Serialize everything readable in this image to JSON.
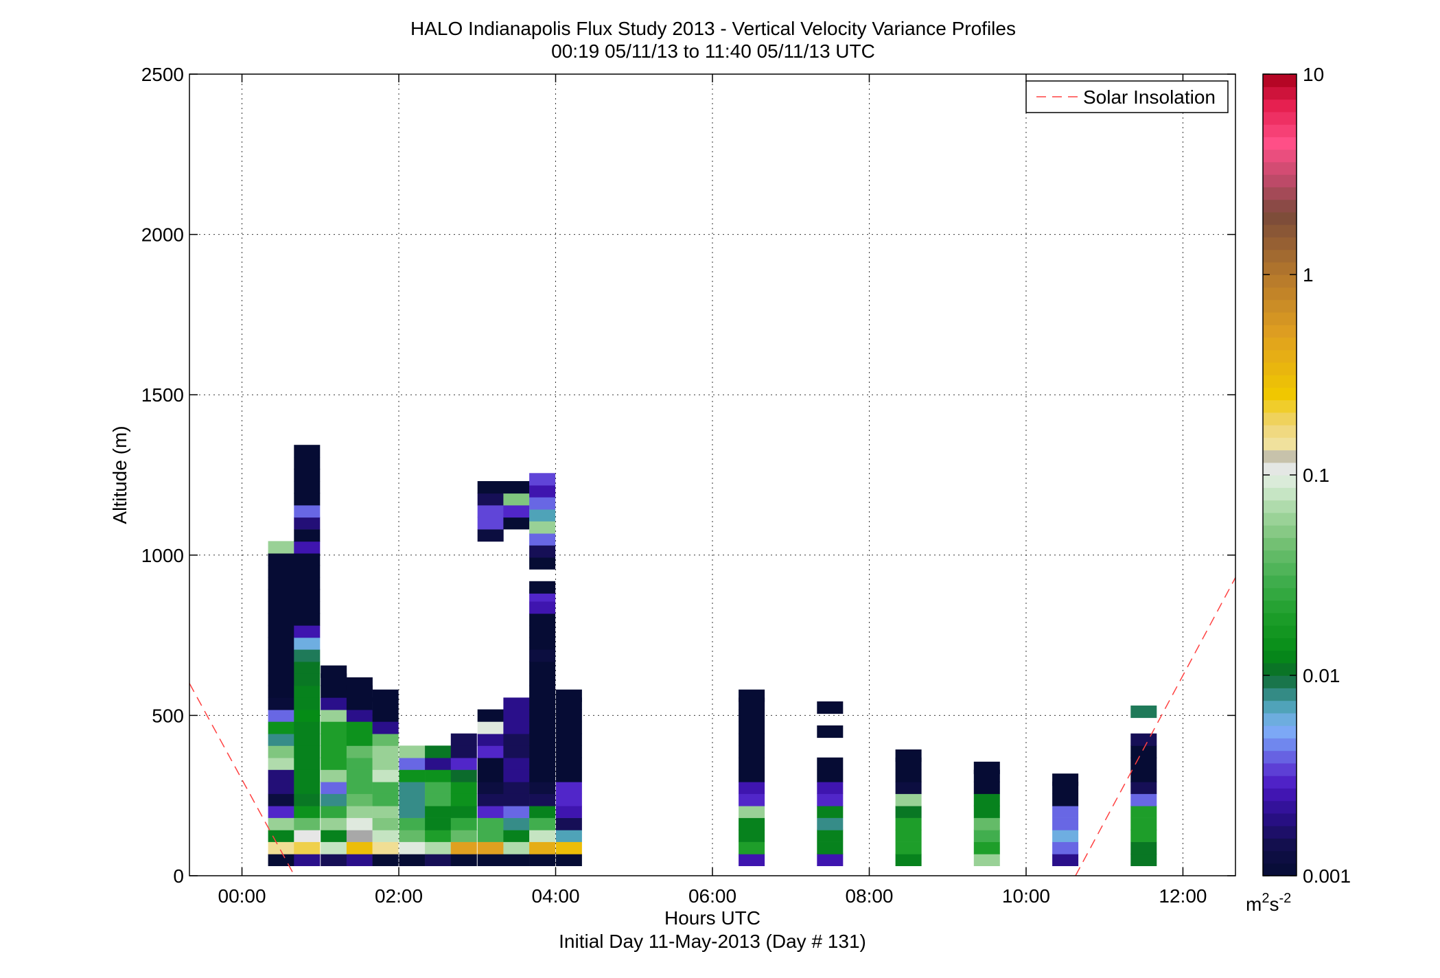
{
  "chart_data": {
    "type": "heatmap",
    "title": "HALO Indianapolis Flux Study 2013 - Vertical Velocity Variance Profiles",
    "subtitle": "00:19 05/11/13 to 11:40 05/11/13  UTC",
    "xlabel": "Hours UTC",
    "xlabel2": "Initial Day 11-May-2013 (Day # 131)",
    "ylabel": "Altitude (m)",
    "xlim": [
      -0.67,
      12.67
    ],
    "ylim": [
      0,
      2500
    ],
    "x_ticks": [
      0,
      2,
      4,
      6,
      8,
      10,
      12
    ],
    "x_tick_labels": [
      "00:00",
      "02:00",
      "04:00",
      "06:00",
      "08:00",
      "10:00",
      "12:00"
    ],
    "y_ticks": [
      0,
      500,
      1000,
      1500,
      2000,
      2500
    ],
    "y_tick_labels": [
      "0",
      "500",
      "1000",
      "1500",
      "2000",
      "2500"
    ],
    "grid": true,
    "legend": {
      "position": "top-right",
      "entries": [
        "Solar Insolation"
      ]
    },
    "colorbar": {
      "scale": "log",
      "range": [
        0.001,
        10
      ],
      "ticks": [
        0.001,
        0.01,
        0.1,
        1,
        10
      ],
      "tick_labels": [
        "0.001",
        "0.01",
        "0.1",
        "1",
        "10"
      ],
      "unit_base": "m",
      "unit_sup1": "2",
      "unit_mid": "s",
      "unit_sup2": "-2"
    },
    "bin_height_m": 37.5,
    "bin_width_h": 0.333,
    "profiles": [
      {
        "t": 0.5,
        "alt": [
          50,
          87,
          125,
          162,
          200,
          237,
          275,
          312,
          350,
          387,
          425,
          462,
          500,
          537,
          575,
          612,
          650,
          687,
          725,
          762,
          800,
          837,
          875,
          912,
          950,
          987,
          1025
        ],
        "v": [
          0.001,
          0.15,
          0.012,
          0.06,
          0.003,
          0.0012,
          0.0018,
          0.0018,
          0.07,
          0.05,
          0.008,
          0.015,
          0.004,
          0.0011,
          0.001,
          0.001,
          0.001,
          0.001,
          0.001,
          0.001,
          0.001,
          0.001,
          0.001,
          0.001,
          0.001,
          0.001,
          0.06
        ]
      },
      {
        "t": 0.83,
        "alt": [
          50,
          87,
          125,
          162,
          200,
          237,
          275,
          312,
          350,
          387,
          425,
          462,
          500,
          537,
          575,
          612,
          650,
          687,
          725,
          762,
          800,
          837,
          875,
          912,
          950,
          987,
          1025,
          1062,
          1100,
          1137,
          1175,
          1212,
          1250,
          1287,
          1325
        ],
        "v": [
          0.002,
          0.2,
          0.11,
          0.04,
          0.015,
          0.011,
          0.012,
          0.012,
          0.012,
          0.012,
          0.012,
          0.012,
          0.013,
          0.012,
          0.012,
          0.011,
          0.011,
          0.009,
          0.006,
          0.0025,
          0.001,
          0.001,
          0.001,
          0.001,
          0.001,
          0.001,
          0.0025,
          0.001,
          0.0018,
          0.004,
          0.001,
          0.001,
          0.001,
          0.001,
          0.001
        ]
      },
      {
        "t": 1.17,
        "alt": [
          50,
          87,
          125,
          162,
          200,
          237,
          275,
          312,
          350,
          387,
          425,
          462,
          500,
          537,
          575,
          612,
          637
        ],
        "v": [
          0.0015,
          0.08,
          0.012,
          0.06,
          0.025,
          0.008,
          0.004,
          0.06,
          0.02,
          0.02,
          0.02,
          0.02,
          0.06,
          0.002,
          0.001,
          0.001,
          0.001
        ]
      },
      {
        "t": 1.5,
        "alt": [
          50,
          87,
          125,
          162,
          200,
          237,
          275,
          312,
          350,
          387,
          425,
          462,
          500,
          537,
          575,
          600
        ],
        "v": [
          0.002,
          0.3,
          0.12,
          0.1,
          0.06,
          0.04,
          0.03,
          0.03,
          0.03,
          0.04,
          0.015,
          0.015,
          0.002,
          0.001,
          0.001,
          0.001
        ]
      },
      {
        "t": 1.83,
        "alt": [
          50,
          87,
          125,
          162,
          200,
          237,
          275,
          312,
          350,
          387,
          425,
          462,
          500,
          537,
          562
        ],
        "v": [
          0.001,
          0.15,
          0.08,
          0.05,
          0.06,
          0.03,
          0.03,
          0.08,
          0.06,
          0.06,
          0.04,
          0.002,
          0.001,
          0.001,
          0.001
        ]
      },
      {
        "t": 2.17,
        "alt": [
          50,
          87,
          125,
          162,
          200,
          237,
          275,
          312,
          350,
          387
        ],
        "v": [
          0.001,
          0.1,
          0.04,
          0.03,
          0.008,
          0.008,
          0.008,
          0.015,
          0.004,
          0.06
        ]
      },
      {
        "t": 2.5,
        "alt": [
          50,
          87,
          125,
          162,
          200,
          237,
          275,
          312,
          350,
          387
        ],
        "v": [
          0.0015,
          0.07,
          0.02,
          0.012,
          0.012,
          0.03,
          0.03,
          0.015,
          0.002,
          0.011
        ]
      },
      {
        "t": 2.83,
        "alt": [
          50,
          87,
          125,
          162,
          200,
          237,
          275,
          312,
          350,
          387,
          425
        ],
        "v": [
          0.001,
          0.5,
          0.04,
          0.025,
          0.012,
          0.015,
          0.015,
          0.01,
          0.003,
          0.0015,
          0.0015
        ]
      },
      {
        "t": 3.17,
        "alt": [
          50,
          87,
          125,
          162,
          200,
          237,
          275,
          312,
          350,
          387,
          425,
          462,
          500,
          1062,
          1100,
          1137,
          1175,
          1212
        ],
        "v": [
          0.001,
          0.5,
          0.03,
          0.03,
          0.003,
          0.0015,
          0.0012,
          0.001,
          0.001,
          0.003,
          0.002,
          0.1,
          0.001,
          0.0012,
          0.0035,
          0.0035,
          0.0015,
          0.001
        ]
      },
      {
        "t": 3.5,
        "alt": [
          50,
          87,
          125,
          162,
          200,
          237,
          275,
          312,
          350,
          387,
          425,
          462,
          500,
          537,
          1100,
          1137,
          1175,
          1212
        ],
        "v": [
          0.001,
          0.07,
          0.012,
          0.008,
          0.004,
          0.0015,
          0.0015,
          0.002,
          0.002,
          0.0015,
          0.0015,
          0.002,
          0.002,
          0.002,
          0.001,
          0.003,
          0.05,
          0.001
        ]
      },
      {
        "t": 3.83,
        "alt": [
          50,
          87,
          125,
          162,
          200,
          237,
          275,
          312,
          350,
          387,
          425,
          462,
          500,
          537,
          575,
          612,
          650,
          687,
          725,
          762,
          800,
          837,
          875,
          900,
          975,
          1012,
          1050,
          1087,
          1125,
          1162,
          1200,
          1237
        ],
        "v": [
          0.001,
          0.4,
          0.08,
          0.03,
          0.012,
          0.0015,
          0.0012,
          0.001,
          0.001,
          0.001,
          0.001,
          0.001,
          0.001,
          0.001,
          0.001,
          0.001,
          0.001,
          0.0012,
          0.001,
          0.001,
          0.001,
          0.0025,
          0.003,
          0.001,
          0.001,
          0.0015,
          0.004,
          0.06,
          0.007,
          0.004,
          0.0025,
          0.0035
        ]
      },
      {
        "t": 4.17,
        "alt": [
          50,
          87,
          125,
          162,
          200,
          237,
          275,
          312,
          350,
          387,
          425,
          462,
          500,
          537,
          562
        ],
        "v": [
          0.001,
          0.3,
          0.007,
          0.0015,
          0.0025,
          0.003,
          0.003,
          0.001,
          0.001,
          0.001,
          0.001,
          0.001,
          0.001,
          0.001,
          0.001
        ]
      },
      {
        "t": 6.5,
        "alt": [
          50,
          87,
          125,
          162,
          200,
          237,
          275,
          312,
          350,
          387,
          425,
          462,
          500,
          537,
          562
        ],
        "v": [
          0.0025,
          0.02,
          0.012,
          0.012,
          0.06,
          0.003,
          0.0025,
          0.001,
          0.001,
          0.001,
          0.001,
          0.001,
          0.001,
          0.001,
          0.001
        ]
      },
      {
        "t": 7.5,
        "alt": [
          50,
          87,
          125,
          162,
          200,
          237,
          275,
          312,
          350,
          450,
          525
        ],
        "v": [
          0.0025,
          0.012,
          0.012,
          0.008,
          0.012,
          0.003,
          0.0025,
          0.001,
          0.001,
          0.001,
          0.001
        ]
      },
      {
        "t": 8.5,
        "alt": [
          50,
          87,
          125,
          162,
          200,
          237,
          275,
          312,
          350,
          375
        ],
        "v": [
          0.012,
          0.02,
          0.02,
          0.02,
          0.011,
          0.06,
          0.0012,
          0.001,
          0.001,
          0.001
        ]
      },
      {
        "t": 9.5,
        "alt": [
          50,
          87,
          125,
          162,
          200,
          237,
          275,
          312,
          337
        ],
        "v": [
          0.06,
          0.02,
          0.03,
          0.04,
          0.012,
          0.012,
          0.001,
          0.001,
          0.001
        ]
      },
      {
        "t": 10.5,
        "alt": [
          50,
          87,
          125,
          162,
          200,
          237,
          275,
          300
        ],
        "v": [
          0.002,
          0.004,
          0.006,
          0.004,
          0.004,
          0.001,
          0.001,
          0.001
        ]
      },
      {
        "t": 11.5,
        "alt": [
          50,
          87,
          125,
          162,
          200,
          237,
          275,
          312,
          350,
          387,
          425,
          512
        ],
        "v": [
          0.011,
          0.011,
          0.02,
          0.02,
          0.02,
          0.004,
          0.0015,
          0.001,
          0.001,
          0.001,
          0.0015,
          0.009
        ]
      }
    ],
    "solar_insolation": {
      "name": "Solar Insolation",
      "color": "#ff4040",
      "segments": [
        {
          "x": [
            -0.67,
            0.67
          ],
          "y": [
            600,
            0
          ]
        },
        {
          "x": [
            10.63,
            12.67
          ],
          "y": [
            0,
            930
          ]
        }
      ]
    },
    "colormap": [
      {
        "v": 0.001,
        "c": "#060c34"
      },
      {
        "v": 0.0014,
        "c": "#110f4a"
      },
      {
        "v": 0.002,
        "c": "#2a0f8a"
      },
      {
        "v": 0.0028,
        "c": "#4a18c2"
      },
      {
        "v": 0.0035,
        "c": "#6045d8"
      },
      {
        "v": 0.0045,
        "c": "#6f85ee"
      },
      {
        "v": 0.0055,
        "c": "#80b4f8"
      },
      {
        "v": 0.007,
        "c": "#4fa3b8"
      },
      {
        "v": 0.0085,
        "c": "#2a8272"
      },
      {
        "v": 0.01,
        "c": "#0c6b2c"
      },
      {
        "v": 0.013,
        "c": "#058c16"
      },
      {
        "v": 0.02,
        "c": "#1e9e2a"
      },
      {
        "v": 0.03,
        "c": "#41ae4e"
      },
      {
        "v": 0.045,
        "c": "#72c072"
      },
      {
        "v": 0.065,
        "c": "#a4d6a0"
      },
      {
        "v": 0.09,
        "c": "#d8ecd6"
      },
      {
        "v": 0.11,
        "c": "#e6e6e6"
      },
      {
        "v": 0.12,
        "c": "#a8a8a8"
      },
      {
        "v": 0.13,
        "c": "#f1e6b0"
      },
      {
        "v": 0.18,
        "c": "#efd470"
      },
      {
        "v": 0.25,
        "c": "#f0c800"
      },
      {
        "v": 0.5,
        "c": "#e0a020"
      },
      {
        "v": 1.0,
        "c": "#b4782c"
      },
      {
        "v": 2.0,
        "c": "#7a4a3a"
      },
      {
        "v": 3.0,
        "c": "#c04a6a"
      },
      {
        "v": 4.5,
        "c": "#ff5088"
      },
      {
        "v": 7.0,
        "c": "#e62050"
      },
      {
        "v": 10.0,
        "c": "#a8001a"
      }
    ]
  }
}
